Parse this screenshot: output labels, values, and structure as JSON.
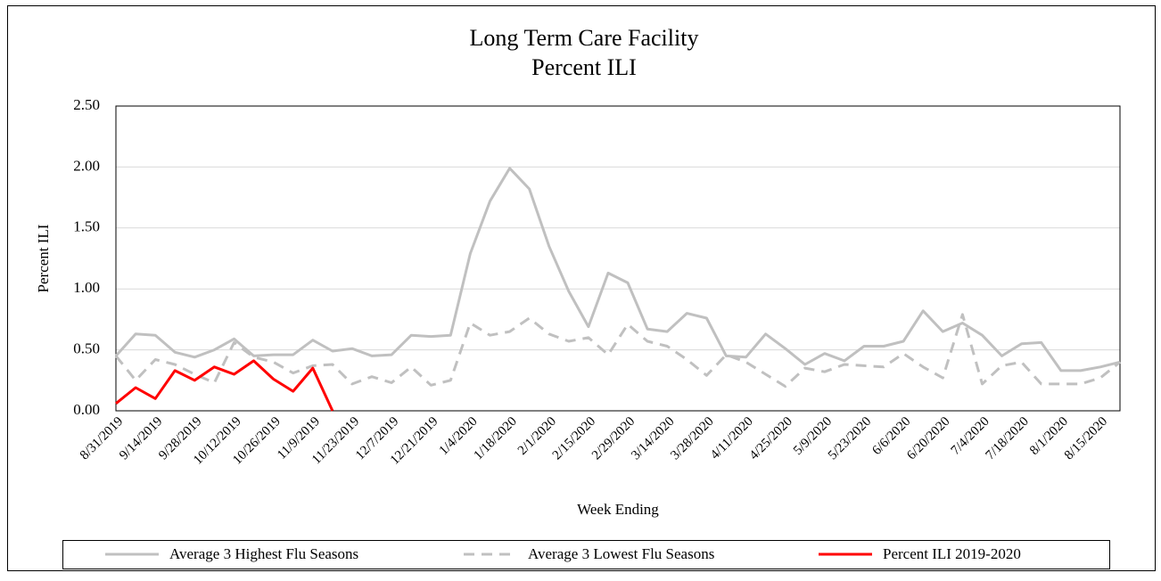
{
  "chart_data": {
    "type": "line",
    "title": "Long Term Care Facility",
    "subtitle": "Percent ILI",
    "x_label": "Week Ending",
    "y_label": "Percent ILI",
    "categories": [
      "8/31/2019",
      null,
      "9/14/2019",
      null,
      "9/28/2019",
      null,
      "10/12/2019",
      null,
      "10/26/2019",
      null,
      "11/9/2019",
      null,
      "11/23/2019",
      null,
      "12/7/2019",
      null,
      "12/21/2019",
      null,
      "1/4/2020",
      null,
      "1/18/2020",
      null,
      "2/1/2020",
      null,
      "2/15/2020",
      null,
      "2/29/2020",
      null,
      "3/14/2020",
      null,
      "3/28/2020",
      null,
      "4/11/2020",
      null,
      "4/25/2020",
      null,
      "5/9/2020",
      null,
      "5/23/2020",
      null,
      "6/6/2020",
      null,
      "6/20/2020",
      null,
      "7/4/2020",
      null,
      "7/18/2020",
      null,
      "8/1/2020",
      null,
      "8/15/2020",
      null
    ],
    "series": [
      {
        "name": "Average 3 Highest Flu Seasons",
        "color": "#c0c0c0",
        "line_style": "solid",
        "values": [
          0.45,
          0.63,
          0.62,
          0.48,
          0.44,
          0.5,
          0.59,
          0.45,
          0.46,
          0.46,
          0.58,
          0.49,
          0.51,
          0.45,
          0.46,
          0.62,
          0.61,
          0.62,
          1.29,
          1.72,
          1.99,
          1.82,
          1.35,
          0.98,
          0.69,
          1.13,
          1.05,
          0.67,
          0.65,
          0.8,
          0.76,
          0.45,
          0.44,
          0.63,
          0.51,
          0.38,
          0.47,
          0.41,
          0.53,
          0.53,
          0.57,
          0.82,
          0.65,
          0.72,
          0.62,
          0.45,
          0.55,
          0.56,
          0.33,
          0.33,
          0.36,
          0.4
        ]
      },
      {
        "name": "Average 3 Lowest Flu Seasons",
        "color": "#c0c0c0",
        "line_style": "dashed",
        "values": [
          0.45,
          0.25,
          0.42,
          0.38,
          0.3,
          0.23,
          0.56,
          0.44,
          0.4,
          0.31,
          0.37,
          0.38,
          0.22,
          0.28,
          0.23,
          0.36,
          0.21,
          0.25,
          0.72,
          0.62,
          0.65,
          0.76,
          0.63,
          0.57,
          0.6,
          0.46,
          0.71,
          0.57,
          0.53,
          0.42,
          0.29,
          0.46,
          0.4,
          0.3,
          0.2,
          0.35,
          0.32,
          0.38,
          0.37,
          0.36,
          0.47,
          0.36,
          0.27,
          0.79,
          0.22,
          0.37,
          0.4,
          0.22,
          0.22,
          0.22,
          0.27,
          0.4
        ]
      },
      {
        "name": "Percent ILI 2019-2020",
        "color": "#ff0000",
        "line_style": "solid",
        "values": [
          0.06,
          0.19,
          0.1,
          0.33,
          0.25,
          0.36,
          0.3,
          0.41,
          0.26,
          0.16,
          0.35,
          0.0,
          null,
          null,
          null,
          null,
          null,
          null,
          null,
          null,
          null,
          null,
          null,
          null,
          null,
          null,
          null,
          null,
          null,
          null,
          null,
          null,
          null,
          null,
          null,
          null,
          null,
          null,
          null,
          null,
          null,
          null,
          null,
          null,
          null,
          null,
          null,
          null,
          null,
          null,
          null,
          null
        ]
      }
    ],
    "ylim": [
      0,
      2.5
    ],
    "yticks": [
      {
        "value": 0,
        "label": "0.00"
      },
      {
        "value": 0.5,
        "label": "0.50"
      },
      {
        "value": 1,
        "label": "1.00"
      },
      {
        "value": 1.5,
        "label": "1.50"
      },
      {
        "value": 2,
        "label": "2.00"
      },
      {
        "value": 2.5,
        "label": "2.50"
      }
    ],
    "grid": true,
    "legend": "bottom"
  }
}
